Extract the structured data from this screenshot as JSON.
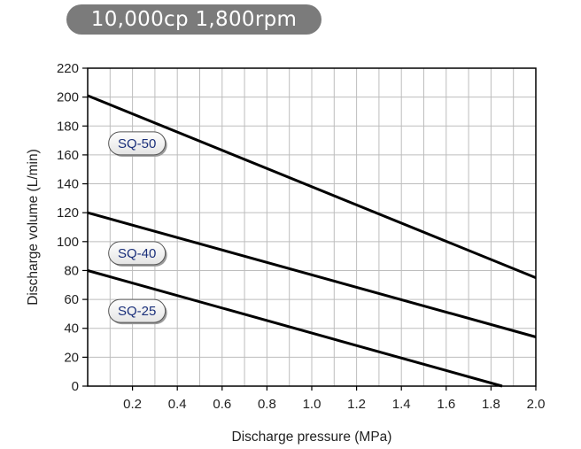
{
  "title": "10,000cp 1,800rpm",
  "chart_data": {
    "type": "line",
    "title": "10,000cp 1,800rpm",
    "xlabel": "Discharge pressure (MPa)",
    "ylabel": "Discharge volume (L/min)",
    "xlim": [
      0,
      2.0
    ],
    "ylim": [
      0,
      220
    ],
    "x_ticks": [
      "0.2",
      "0.4",
      "0.6",
      "0.8",
      "1.0",
      "1.2",
      "1.4",
      "1.6",
      "1.8",
      "2.0"
    ],
    "y_ticks": [
      "0",
      "20",
      "40",
      "60",
      "80",
      "100",
      "120",
      "140",
      "160",
      "180",
      "200",
      "220"
    ],
    "grid": true,
    "series": [
      {
        "name": "SQ-50",
        "points": [
          [
            0,
            201
          ],
          [
            2.0,
            75
          ]
        ]
      },
      {
        "name": "SQ-40",
        "points": [
          [
            0,
            120
          ],
          [
            2.0,
            34
          ]
        ]
      },
      {
        "name": "SQ-25",
        "points": [
          [
            0,
            80
          ],
          [
            1.85,
            0
          ]
        ]
      }
    ],
    "label_anchor_values": [
      {
        "series": "SQ-50",
        "x": 0.22,
        "y": 168
      },
      {
        "series": "SQ-40",
        "x": 0.22,
        "y": 92
      },
      {
        "series": "SQ-25",
        "x": 0.22,
        "y": 52
      }
    ],
    "colors": {
      "line": "#000000",
      "grid": "#bdbdbd",
      "label_text": "#1a2f7a",
      "title_bg": "#7b7b7b"
    }
  }
}
